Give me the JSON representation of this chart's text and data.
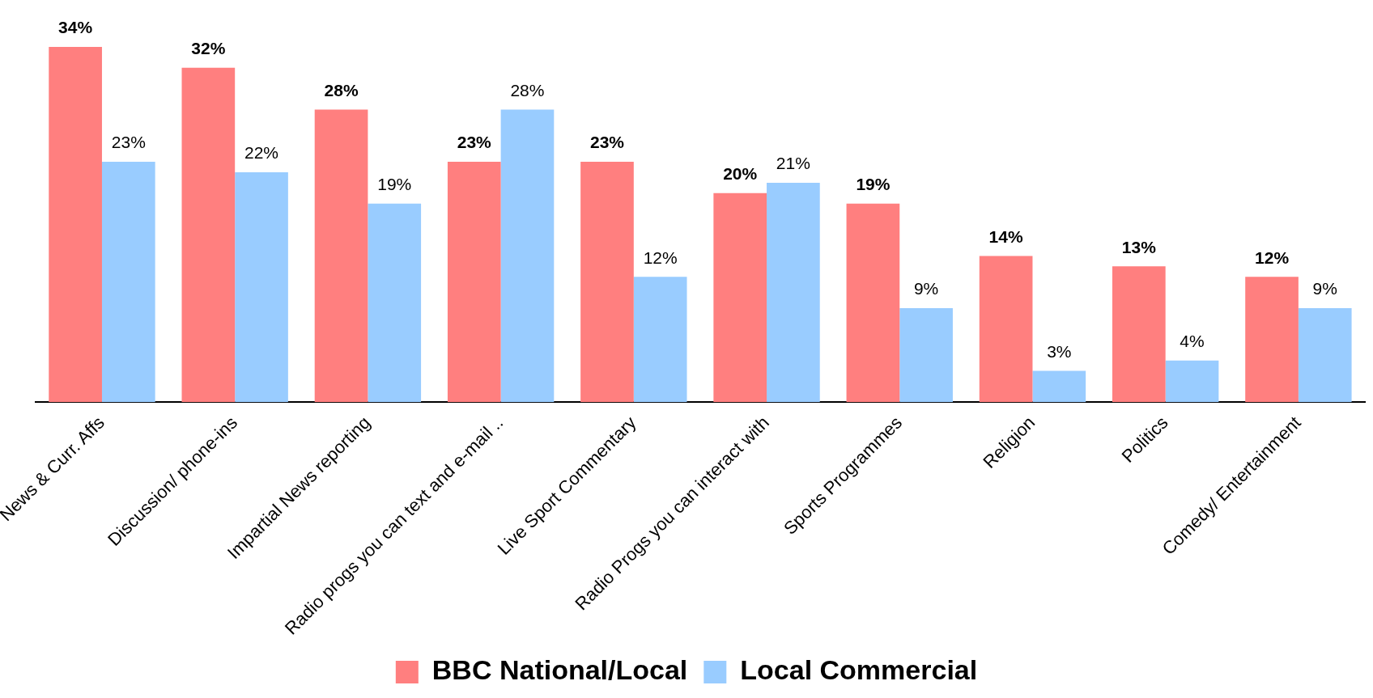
{
  "chart_data": {
    "type": "bar",
    "categories": [
      "News & Curr. Affs",
      "Discussion/ phone-ins",
      "Impartial News reporting",
      "Radio progs you can text and e-mail ..",
      "Live Sport Commentary",
      "Radio Progs you can interact with",
      "Sports Programmes",
      "Religion",
      "Politics",
      "Comedy/ Entertainment"
    ],
    "series": [
      {
        "name": "BBC National/Local",
        "color": "#ff7f7f",
        "values": [
          34,
          32,
          28,
          23,
          23,
          20,
          19,
          14,
          13,
          12
        ],
        "value_labels": [
          "34%",
          "32%",
          "28%",
          "23%",
          "23%",
          "20%",
          "19%",
          "14%",
          "13%",
          "12%"
        ]
      },
      {
        "name": "Local Commercial",
        "color": "#99ccff",
        "values": [
          23,
          22,
          19,
          28,
          12,
          21,
          9,
          3,
          4,
          9
        ],
        "value_labels": [
          "23%",
          "22%",
          "19%",
          "28%",
          "12%",
          "21%",
          "9%",
          "3%",
          "4%",
          "9%"
        ]
      }
    ],
    "grid": false,
    "legend": "bottom",
    "tick_labels": "x"
  }
}
